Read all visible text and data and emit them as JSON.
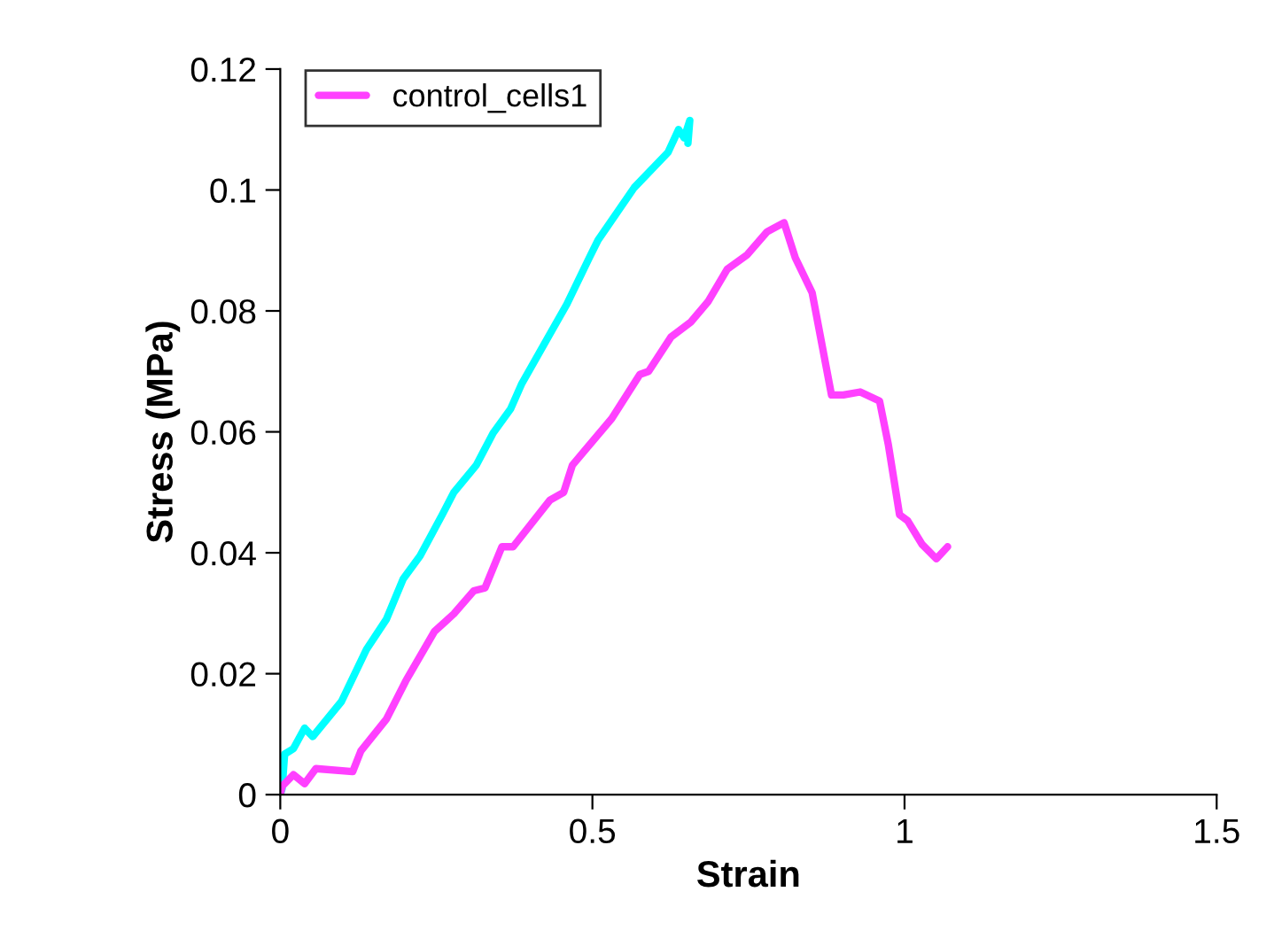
{
  "chart_data": {
    "type": "line",
    "xlabel": "Strain",
    "ylabel": "Stress (MPa)",
    "xlim": [
      0,
      1.5
    ],
    "xticks": [
      0,
      0.5,
      1,
      1.5
    ],
    "ylim": [
      0,
      0.12
    ],
    "yticks": [
      0,
      0.02,
      0.04,
      0.06,
      0.08,
      0.1,
      0.12
    ],
    "grid": false,
    "legend": "top left",
    "marker": "none",
    "line_style": "solid",
    "series": [
      {
        "color": "#00ffff",
        "x": [
          0,
          0.003,
          0.007,
          0.021,
          0.039,
          0.052,
          0.098,
          0.138,
          0.17,
          0.197,
          0.224,
          0.26,
          0.278,
          0.314,
          0.341,
          0.369,
          0.387,
          0.432,
          0.459,
          0.495,
          0.509,
          0.567,
          0.621,
          0.638,
          0.647,
          0.656,
          0.653
        ],
        "values": [
          0,
          0.001,
          0.0067,
          0.0076,
          0.011,
          0.0096,
          0.0154,
          0.024,
          0.029,
          0.0357,
          0.0395,
          0.0464,
          0.05,
          0.0545,
          0.0598,
          0.0638,
          0.068,
          0.0762,
          0.0811,
          0.0888,
          0.0917,
          0.1004,
          0.1062,
          0.11,
          0.1086,
          0.1115,
          0.1077
        ]
      },
      {
        "name": "control_cells1",
        "color": "#ff40ff",
        "x": [
          0,
          0.003,
          0.021,
          0.039,
          0.057,
          0.116,
          0.129,
          0.17,
          0.201,
          0.247,
          0.278,
          0.31,
          0.328,
          0.355,
          0.373,
          0.432,
          0.454,
          0.468,
          0.531,
          0.576,
          0.59,
          0.626,
          0.658,
          0.685,
          0.716,
          0.748,
          0.78,
          0.807,
          0.825,
          0.852,
          0.883,
          0.902,
          0.929,
          0.96,
          0.974,
          0.992,
          1.005,
          1.028,
          1.051,
          1.069
        ],
        "values": [
          0,
          0.0014,
          0.0033,
          0.0018,
          0.0043,
          0.0038,
          0.0072,
          0.0125,
          0.0188,
          0.027,
          0.0299,
          0.0337,
          0.0342,
          0.041,
          0.041,
          0.0487,
          0.05,
          0.0545,
          0.0622,
          0.0695,
          0.07,
          0.0757,
          0.0782,
          0.0815,
          0.0869,
          0.0893,
          0.0931,
          0.0946,
          0.0888,
          0.083,
          0.0661,
          0.0661,
          0.0666,
          0.0651,
          0.0579,
          0.0463,
          0.0453,
          0.0414,
          0.039,
          0.041
        ]
      }
    ]
  }
}
